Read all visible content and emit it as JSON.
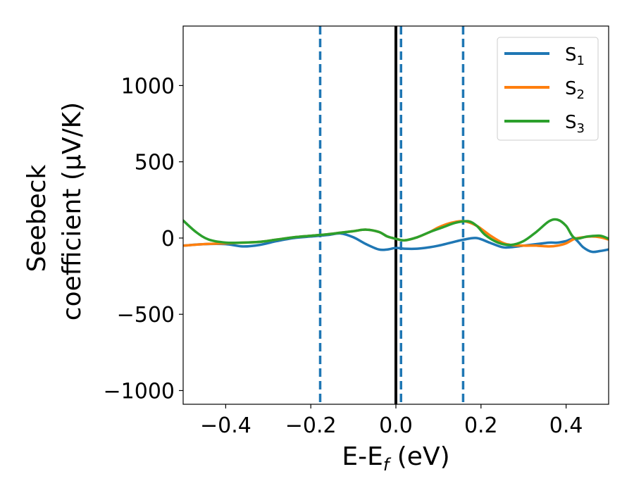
{
  "chart_data": {
    "type": "line",
    "xlabel": "E-E",
    "xlabel_sub": "f",
    "xlabel_unit": " (eV)",
    "ylabel_line1": "Seebeck",
    "ylabel_line2": "coefficient  (μV/K)",
    "xlim": [
      -0.5,
      0.5
    ],
    "ylim": [
      -1090,
      1390
    ],
    "xticks": [
      -0.4,
      -0.2,
      0.0,
      0.2,
      0.4
    ],
    "xtick_labels": [
      "−0.4",
      "−0.2",
      "0.0",
      "0.2",
      "0.4"
    ],
    "yticks": [
      -1000,
      -500,
      0,
      500,
      1000
    ],
    "ytick_labels": [
      "−1000",
      "−500",
      "0",
      "500",
      "1000"
    ],
    "grid": false,
    "legend_position": "top-right",
    "vlines": [
      {
        "x": 0.0,
        "style": "solid",
        "color": "#000000"
      },
      {
        "x": -0.178,
        "style": "dashed",
        "color": "#1f77b4"
      },
      {
        "x": 0.012,
        "style": "dashed",
        "color": "#1f77b4"
      },
      {
        "x": 0.158,
        "style": "dashed",
        "color": "#1f77b4"
      }
    ],
    "series": [
      {
        "name": "S",
        "name_sub": "1",
        "color": "#1f77b4",
        "x": [
          -0.5,
          -0.45,
          -0.4,
          -0.36,
          -0.32,
          -0.28,
          -0.24,
          -0.2,
          -0.16,
          -0.13,
          -0.1,
          -0.07,
          -0.04,
          -0.02,
          0.0,
          0.02,
          0.05,
          0.08,
          0.1,
          0.13,
          0.16,
          0.19,
          0.22,
          0.25,
          0.27,
          0.3,
          0.33,
          0.36,
          0.38,
          0.4,
          0.42,
          0.44,
          0.46,
          0.48,
          0.5
        ],
        "y": [
          -50,
          -40,
          -40,
          -55,
          -45,
          -20,
          0,
          10,
          20,
          30,
          5,
          -40,
          -75,
          -75,
          -65,
          -70,
          -70,
          -60,
          -50,
          -30,
          -10,
          0,
          -30,
          -60,
          -60,
          -50,
          -40,
          -30,
          -30,
          -20,
          -5,
          -60,
          -90,
          -85,
          -75
        ]
      },
      {
        "name": "S",
        "name_sub": "2",
        "color": "#ff7f0e",
        "x": [
          -0.5,
          -0.45,
          -0.4,
          -0.36,
          -0.32,
          -0.28,
          -0.24,
          -0.2,
          -0.16,
          -0.13,
          -0.1,
          -0.07,
          -0.04,
          -0.02,
          0.0,
          0.02,
          0.05,
          0.08,
          0.1,
          0.13,
          0.16,
          0.19,
          0.22,
          0.25,
          0.27,
          0.3,
          0.33,
          0.36,
          0.38,
          0.4,
          0.42,
          0.44,
          0.46,
          0.48,
          0.5
        ],
        "y": [
          -50,
          -40,
          -35,
          -30,
          -25,
          -10,
          5,
          15,
          25,
          35,
          45,
          55,
          40,
          10,
          -5,
          -15,
          5,
          40,
          70,
          100,
          110,
          80,
          20,
          -30,
          -45,
          -50,
          -50,
          -55,
          -50,
          -35,
          -5,
          5,
          10,
          5,
          -10
        ]
      },
      {
        "name": "S",
        "name_sub": "3",
        "color": "#2ca02c",
        "x": [
          -0.5,
          -0.47,
          -0.44,
          -0.4,
          -0.36,
          -0.32,
          -0.28,
          -0.24,
          -0.2,
          -0.16,
          -0.13,
          -0.1,
          -0.07,
          -0.04,
          -0.02,
          0.0,
          0.02,
          0.05,
          0.08,
          0.11,
          0.14,
          0.17,
          0.19,
          0.21,
          0.24,
          0.27,
          0.3,
          0.33,
          0.36,
          0.38,
          0.4,
          0.42,
          0.45,
          0.48,
          0.5
        ],
        "y": [
          115,
          40,
          -10,
          -30,
          -30,
          -25,
          -10,
          5,
          15,
          25,
          35,
          45,
          55,
          40,
          10,
          -5,
          -15,
          5,
          40,
          70,
          100,
          110,
          80,
          20,
          -30,
          -45,
          -20,
          40,
          110,
          120,
          80,
          0,
          10,
          15,
          -5
        ]
      }
    ]
  }
}
